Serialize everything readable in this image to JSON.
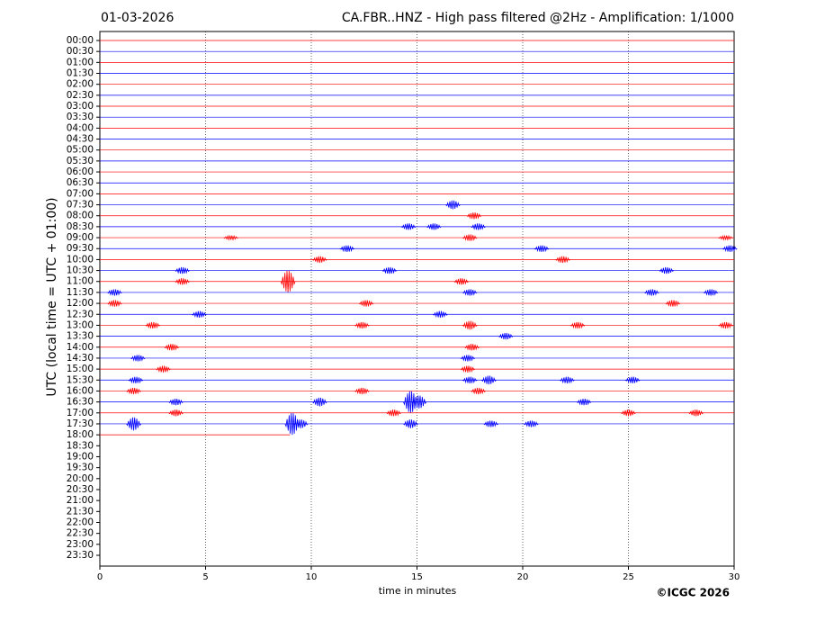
{
  "chart_data": {
    "type": "helicorder",
    "title_left": "01-03-2026",
    "title": "CA.FBR..HNZ - High pass filtered @2Hz - Amplification: 1/1000",
    "xlabel": "time in minutes",
    "ylabel": "UTC (local time = UTC + 01:00)",
    "copyright": "©ICGC 2026",
    "xlim": [
      0,
      30
    ],
    "xticks": [
      0,
      5,
      10,
      15,
      20,
      25,
      30
    ],
    "grid": true,
    "colors": [
      "#ff0000",
      "#0000ff"
    ],
    "categories": [
      "00:00",
      "00:30",
      "01:00",
      "01:30",
      "02:00",
      "02:30",
      "03:00",
      "03:30",
      "04:00",
      "04:30",
      "05:00",
      "05:30",
      "06:00",
      "06:30",
      "07:00",
      "07:30",
      "08:00",
      "08:30",
      "09:00",
      "09:30",
      "10:00",
      "10:30",
      "11:00",
      "11:30",
      "12:00",
      "12:30",
      "13:00",
      "13:30",
      "14:00",
      "14:30",
      "15:00",
      "15:30",
      "16:00",
      "16:30",
      "17:00",
      "17:30",
      "18:00",
      "18:30",
      "19:00",
      "19:30",
      "20:00",
      "20:30",
      "21:00",
      "21:30",
      "22:00",
      "22:30",
      "23:00",
      "23:30"
    ],
    "traces": [
      {
        "end": 30,
        "bursts": []
      },
      {
        "end": 30,
        "bursts": []
      },
      {
        "end": 30,
        "bursts": []
      },
      {
        "end": 30,
        "bursts": []
      },
      {
        "end": 30,
        "bursts": []
      },
      {
        "end": 30,
        "bursts": []
      },
      {
        "end": 30,
        "bursts": []
      },
      {
        "end": 30,
        "bursts": []
      },
      {
        "end": 30,
        "bursts": []
      },
      {
        "end": 30,
        "bursts": []
      },
      {
        "end": 30,
        "bursts": []
      },
      {
        "end": 30,
        "bursts": []
      },
      {
        "end": 30,
        "bursts": []
      },
      {
        "end": 30,
        "bursts": []
      },
      {
        "end": 30,
        "bursts": []
      },
      {
        "end": 30,
        "bursts": [
          [
            16.7,
            0.4
          ]
        ]
      },
      {
        "end": 30,
        "bursts": [
          [
            17.7,
            0.3
          ]
        ]
      },
      {
        "end": 30,
        "bursts": [
          [
            14.6,
            0.3
          ],
          [
            15.8,
            0.3
          ],
          [
            17.9,
            0.3
          ]
        ]
      },
      {
        "end": 30,
        "bursts": [
          [
            6.2,
            0.2
          ],
          [
            17.5,
            0.3
          ],
          [
            29.6,
            0.2
          ]
        ]
      },
      {
        "end": 30,
        "bursts": [
          [
            11.7,
            0.3
          ],
          [
            20.9,
            0.3
          ],
          [
            29.8,
            0.3
          ]
        ]
      },
      {
        "end": 30,
        "bursts": [
          [
            10.4,
            0.3
          ],
          [
            21.9,
            0.3
          ]
        ]
      },
      {
        "end": 30,
        "bursts": [
          [
            3.9,
            0.3
          ],
          [
            13.7,
            0.3
          ],
          [
            26.8,
            0.3
          ]
        ]
      },
      {
        "end": 30,
        "bursts": [
          [
            3.9,
            0.3
          ],
          [
            8.9,
            1.0
          ],
          [
            17.1,
            0.3
          ]
        ]
      },
      {
        "end": 30,
        "bursts": [
          [
            0.7,
            0.3
          ],
          [
            17.5,
            0.3
          ],
          [
            26.1,
            0.3
          ],
          [
            28.9,
            0.3
          ]
        ]
      },
      {
        "end": 30,
        "bursts": [
          [
            0.7,
            0.3
          ],
          [
            12.6,
            0.3
          ],
          [
            27.1,
            0.3
          ]
        ]
      },
      {
        "end": 30,
        "bursts": [
          [
            4.7,
            0.3
          ],
          [
            16.1,
            0.3
          ]
        ]
      },
      {
        "end": 30,
        "bursts": [
          [
            2.5,
            0.3
          ],
          [
            12.4,
            0.3
          ],
          [
            17.5,
            0.4
          ],
          [
            22.6,
            0.3
          ],
          [
            29.6,
            0.3
          ]
        ]
      },
      {
        "end": 30,
        "bursts": [
          [
            19.2,
            0.3
          ]
        ]
      },
      {
        "end": 30,
        "bursts": [
          [
            3.4,
            0.3
          ],
          [
            17.6,
            0.3
          ]
        ]
      },
      {
        "end": 30,
        "bursts": [
          [
            1.8,
            0.3
          ],
          [
            17.4,
            0.3
          ]
        ]
      },
      {
        "end": 30,
        "bursts": [
          [
            3.0,
            0.3
          ],
          [
            17.4,
            0.3
          ]
        ]
      },
      {
        "end": 30,
        "bursts": [
          [
            1.7,
            0.3
          ],
          [
            17.5,
            0.3
          ],
          [
            18.4,
            0.4
          ],
          [
            22.1,
            0.3
          ],
          [
            25.2,
            0.3
          ]
        ]
      },
      {
        "end": 30,
        "bursts": [
          [
            1.6,
            0.3
          ],
          [
            12.4,
            0.3
          ],
          [
            17.9,
            0.3
          ]
        ]
      },
      {
        "end": 30,
        "bursts": [
          [
            3.6,
            0.3
          ],
          [
            10.4,
            0.4
          ],
          [
            14.7,
            1.0
          ],
          [
            15.1,
            0.6
          ],
          [
            22.9,
            0.3
          ]
        ]
      },
      {
        "end": 30,
        "bursts": [
          [
            3.6,
            0.3
          ],
          [
            13.9,
            0.3
          ],
          [
            25,
            0.3
          ],
          [
            28.2,
            0.3
          ]
        ]
      },
      {
        "end": 30,
        "bursts": [
          [
            1.6,
            0.6
          ],
          [
            9.1,
            1.0
          ],
          [
            9.5,
            0.4
          ],
          [
            14.7,
            0.4
          ],
          [
            18.5,
            0.3
          ],
          [
            20.4,
            0.3
          ]
        ]
      },
      {
        "end": 9,
        "bursts": []
      }
    ]
  }
}
